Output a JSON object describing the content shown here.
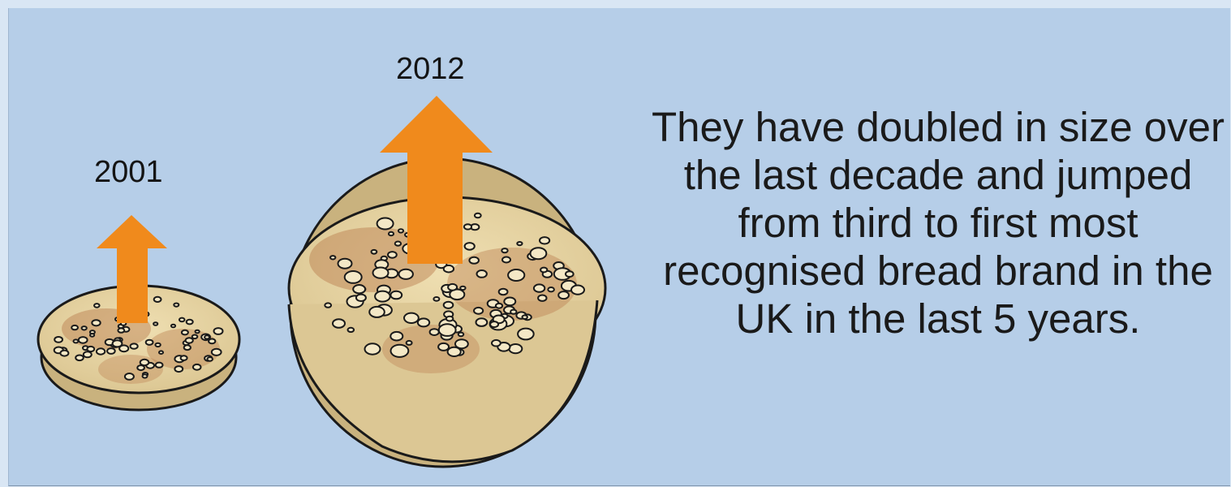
{
  "labels": {
    "year_small": "2001",
    "year_large": "2012"
  },
  "description": "They have doubled in size over the last decade and jumped from third to first most recognised bread brand in the UK in the last 5 years.",
  "colors": {
    "background": "#b6cee8",
    "arrow": "#f08a1c",
    "crumpet_base": "#ead7a4",
    "crumpet_brown": "#a86d45",
    "outline": "#1a1a1a"
  },
  "icons": [
    "crumpet-small-icon",
    "crumpet-large-icon",
    "arrow-up-small-icon",
    "arrow-up-large-icon"
  ]
}
